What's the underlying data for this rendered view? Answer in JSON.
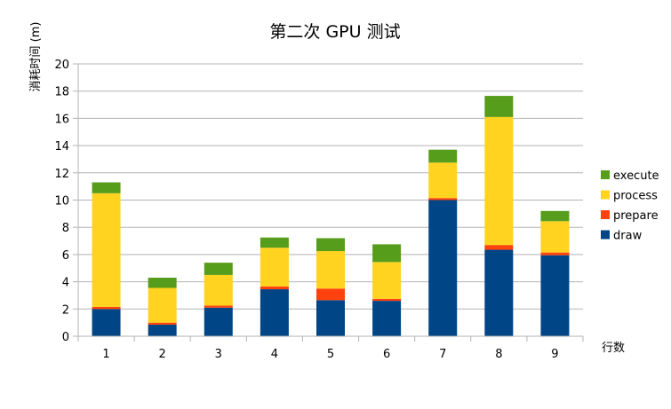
{
  "chart_data": {
    "type": "bar",
    "stacked": true,
    "title": "第二次 GPU 测试",
    "xlabel": "行数",
    "ylabel": "消耗时间 (m)",
    "ylim": [
      0,
      20
    ],
    "yticks": [
      0,
      2,
      4,
      6,
      8,
      10,
      12,
      14,
      16,
      18,
      20
    ],
    "grid": true,
    "legend_position": "right",
    "categories": [
      "1",
      "2",
      "3",
      "4",
      "5",
      "6",
      "7",
      "8",
      "9"
    ],
    "series": [
      {
        "name": "draw",
        "color": "#004586",
        "values": [
          2.0,
          0.85,
          2.1,
          3.45,
          2.65,
          2.6,
          10.0,
          6.35,
          5.95
        ]
      },
      {
        "name": "prepare",
        "color": "#ff420e",
        "values": [
          0.15,
          0.15,
          0.15,
          0.2,
          0.85,
          0.15,
          0.15,
          0.35,
          0.2
        ]
      },
      {
        "name": "process",
        "color": "#ffd320",
        "values": [
          8.35,
          2.55,
          2.25,
          2.85,
          2.75,
          2.7,
          2.6,
          9.4,
          2.3
        ]
      },
      {
        "name": "execute",
        "color": "#579d1c",
        "values": [
          0.8,
          0.75,
          0.9,
          0.75,
          0.95,
          1.3,
          0.95,
          1.55,
          0.75
        ]
      }
    ],
    "legend_order": [
      "execute",
      "process",
      "prepare",
      "draw"
    ]
  }
}
